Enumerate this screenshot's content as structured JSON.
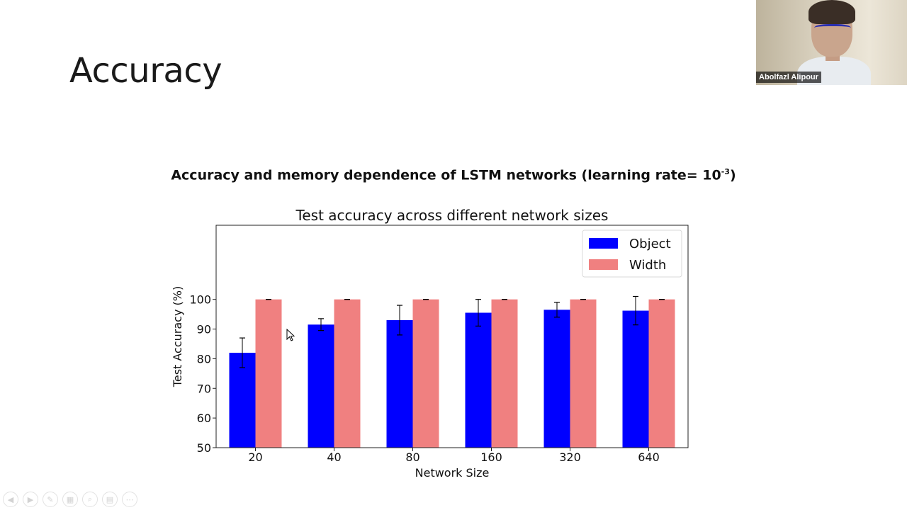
{
  "slide": {
    "title": "Accuracy",
    "subtitle_main": "Accuracy and memory dependence of LSTM networks (learning rate= 10",
    "subtitle_exp": "-3",
    "subtitle_end": ")"
  },
  "video": {
    "participant_name": "Abolfazl Alipour"
  },
  "controls": [
    {
      "icon": "previous-icon",
      "glyph": "◀"
    },
    {
      "icon": "next-icon",
      "glyph": "▶"
    },
    {
      "icon": "pen-icon",
      "glyph": "✎"
    },
    {
      "icon": "slides-icon",
      "glyph": "▦"
    },
    {
      "icon": "zoom-icon",
      "glyph": "⌕"
    },
    {
      "icon": "subtitles-icon",
      "glyph": "▤"
    },
    {
      "icon": "more-icon",
      "glyph": "⋯"
    }
  ],
  "chart_data": {
    "type": "bar",
    "title": "Test accuracy across different network sizes",
    "xlabel": "Network Size",
    "ylabel": "Test Accuracy (%)",
    "categories": [
      "20",
      "40",
      "80",
      "160",
      "320",
      "640"
    ],
    "yticks": [
      50,
      60,
      70,
      80,
      90,
      100
    ],
    "ylim": [
      50,
      125
    ],
    "legend_position": "upper-right",
    "series": [
      {
        "name": "Object",
        "color": "#0000ff",
        "values": [
          82,
          91.5,
          93,
          95.5,
          96.5,
          96.2
        ],
        "errors": [
          5,
          2,
          5,
          4.5,
          2.5,
          4.8
        ]
      },
      {
        "name": "Width",
        "color": "#f08080",
        "values": [
          100,
          100,
          100,
          100,
          100,
          100
        ],
        "errors": [
          0,
          0,
          0,
          0,
          0,
          0
        ]
      }
    ]
  }
}
